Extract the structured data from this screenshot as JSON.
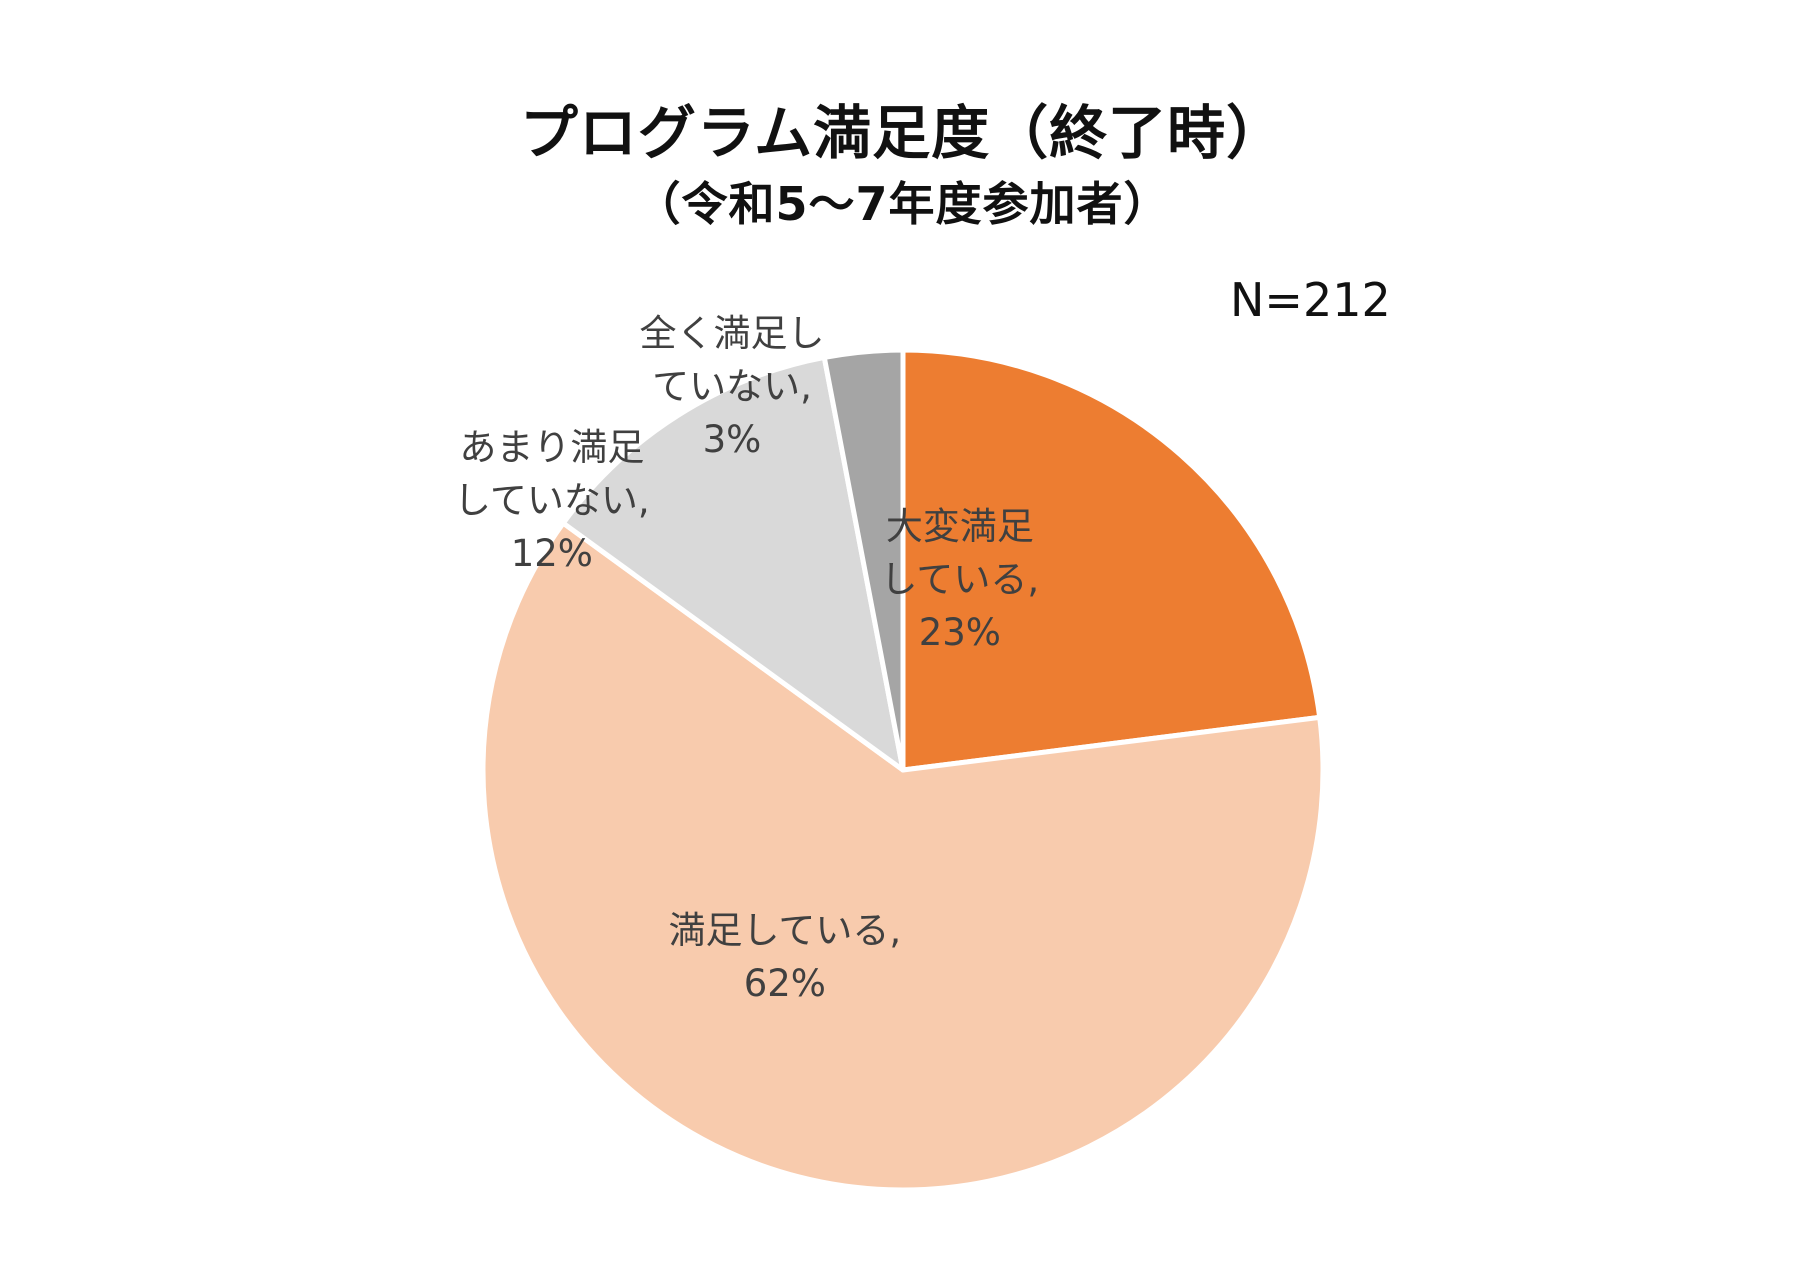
{
  "chart_data": {
    "type": "pie",
    "title": "プログラム満足度（終了時）",
    "subtitle": "（令和5～7年度参加者）",
    "n_label": "N=212",
    "start_angle_deg": 0,
    "direction": "clockwise",
    "slices": [
      {
        "label_lines": [
          "大変満足",
          "している,"
        ],
        "value": 23,
        "value_label": "23%",
        "color": "#ED7D31"
      },
      {
        "label_lines": [
          "満足している,"
        ],
        "value": 62,
        "value_label": "62%",
        "color": "#F8CBAD"
      },
      {
        "label_lines": [
          "あまり満足",
          "していない,"
        ],
        "value": 12,
        "value_label": "12%",
        "color": "#D9D9D9"
      },
      {
        "label_lines": [
          "全く満足し",
          "ていない,"
        ],
        "value": 3,
        "value_label": "3%",
        "color": "#A5A5A5"
      }
    ]
  }
}
